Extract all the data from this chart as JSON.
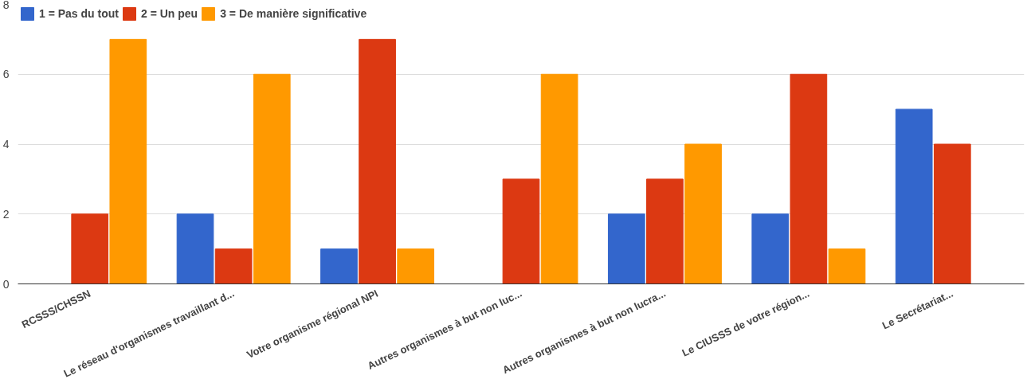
{
  "chart_data": {
    "type": "bar",
    "categories": [
      "RCSSS/CHSSN",
      "Le réseau d'organismes travaillant d...",
      "Votre organisme régional NPI",
      "Autres organismes à but non luc...",
      "Autres organismes à but non lucra...",
      "Le CIUSSS de votre région...",
      "Le Secrétariat..."
    ],
    "series": [
      {
        "name": "1 = Pas du tout",
        "color": "#3366cc",
        "values": [
          0,
          2,
          1,
          0,
          2,
          2,
          5
        ]
      },
      {
        "name": "2 = Un peu",
        "color": "#dc3912",
        "values": [
          2,
          1,
          7,
          3,
          3,
          6,
          4
        ]
      },
      {
        "name": "3 = De manière significative",
        "color": "#ff9900",
        "values": [
          7,
          6,
          1,
          6,
          4,
          1,
          0
        ]
      }
    ],
    "ylim": [
      0,
      8
    ],
    "yticks": [
      0,
      2,
      4,
      6,
      8
    ],
    "grid": "y",
    "legend": "top"
  }
}
